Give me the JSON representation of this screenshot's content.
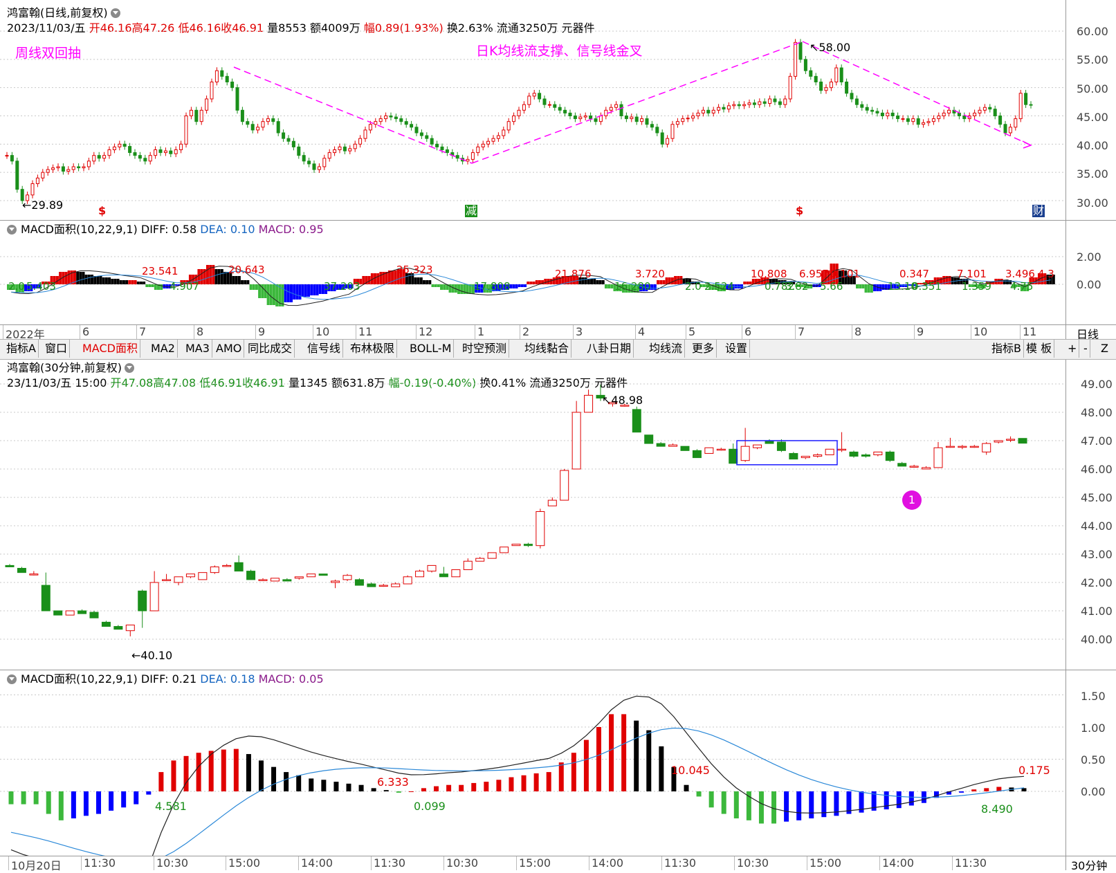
{
  "daily": {
    "title": "鸿富翰(日线,前复权)",
    "info": {
      "date": "2023/11/03/五",
      "open": "开46.16",
      "high": "高47.26",
      "low": "低46.16",
      "close": "收46.91",
      "volume": "量8553",
      "amount": "额4009万",
      "range": "幅0.89(1.93%)",
      "turnover": "换2.63%",
      "float": "流通3250万",
      "sector": "元器件"
    },
    "annotation_left": "周线双回抽",
    "annotation_mid": "日K均线流支撑、信号线金叉",
    "high_label": "58.00",
    "low_label": "29.89",
    "y_ticks": [
      "60.00",
      "55.00",
      "50.00",
      "45.00",
      "40.00",
      "35.00",
      "30.00"
    ],
    "markers": [
      "$",
      "减",
      "$",
      "财"
    ]
  },
  "daily_macd": {
    "name": "MACD面积(10,22,9,1)",
    "diff": "DIFF: 0.58",
    "dea": "DEA: 0.10",
    "macd": "MACD: 0.95",
    "y_ticks": [
      "2.00",
      "0.00"
    ],
    "area_labels_red": [
      "23.541",
      "20.643",
      "25.323",
      "21.876",
      "3.720",
      "10.808",
      "6.957",
      "0.101",
      "0.347",
      "7.101",
      "3.496",
      "4.3"
    ],
    "area_labels_green": [
      "2.0",
      "5.403",
      "4.907",
      "37.203",
      "17.808",
      "16.280",
      "2.0",
      "2.524",
      "0.782",
      "3.82",
      "5.66",
      "13.10",
      "0.351",
      "1.359",
      "4.75"
    ]
  },
  "month_axis": [
    "2022年",
    "6",
    "7",
    "8",
    "9",
    "10",
    "11",
    "12",
    "1",
    "2",
    "3",
    "4",
    "5",
    "6",
    "7",
    "8",
    "9",
    "10",
    "11"
  ],
  "period_daily": "日线",
  "toolbar": {
    "items": [
      "指标A",
      "窗口",
      "MACD面积",
      "MA2",
      "MA3",
      "AMO",
      "同比成交",
      "信号线",
      "布林极限",
      "BOLL-M",
      "时空预测",
      "均线黏合",
      "八卦日期",
      "均线流",
      "更多",
      "设置"
    ],
    "active": "MACD面积",
    "right_items": [
      "指标B",
      "模 板",
      "+",
      "-",
      "Z"
    ]
  },
  "intraday": {
    "title": "鸿富翰(30分钟,前复权)",
    "info": {
      "date": "23/11/03/五 15:00",
      "open": "开47.08",
      "high": "高47.08",
      "low": "低46.91",
      "close": "收46.91",
      "volume": "量1345",
      "amount": "额631.8万",
      "range": "幅-0.19(-0.40%)",
      "turnover": "换0.41%",
      "float": "流通3250万",
      "sector": "元器件"
    },
    "high_label": "48.98",
    "low_label": "40.10",
    "badge": "1",
    "y_ticks": [
      "49.00",
      "48.00",
      "47.00",
      "46.00",
      "45.00",
      "44.00",
      "43.00",
      "42.00",
      "41.00",
      "40.00"
    ]
  },
  "intraday_macd": {
    "name": "MACD面积(10,22,9,1)",
    "diff": "DIFF: 0.21",
    "dea": "DEA: 0.18",
    "macd": "MACD: 0.05",
    "y_ticks": [
      "1.50",
      "1.00",
      "0.50",
      "0.00"
    ],
    "labels": {
      "a": "4.581",
      "b": "6.333",
      "c": "0.099",
      "d": "10.045",
      "e": "8.490",
      "f": "0.175"
    }
  },
  "time_axis": [
    "10月20日",
    "11:30",
    "10:30",
    "15:00",
    "14:00",
    "11:30",
    "10:30",
    "15:00",
    "14:00",
    "11:30",
    "10:30",
    "15:00",
    "14:00",
    "11:30"
  ],
  "period_intraday": "30分钟",
  "colors": {
    "up": "#e00000",
    "down": "#1a8f1a",
    "macd_blue": "#0000ff",
    "macd_black": "#000000",
    "trend": "#ff00ff",
    "dea": "#2a88d8"
  },
  "chart_data": [
    {
      "type": "bar",
      "name": "30min candles",
      "note_ohlc": "open/high/low/close",
      "candles": [
        [
          42.6,
          42.65,
          42.55,
          42.55
        ],
        [
          42.5,
          42.55,
          42.35,
          42.35
        ],
        [
          42.3,
          42.4,
          42.25,
          42.3
        ],
        [
          41.9,
          42.35,
          41.0,
          41.0
        ],
        [
          41.0,
          41.0,
          40.85,
          40.85
        ],
        [
          40.85,
          41.0,
          40.85,
          41.0
        ],
        [
          41.0,
          41.05,
          40.9,
          40.9
        ],
        [
          40.95,
          41.0,
          40.75,
          40.75
        ],
        [
          40.6,
          40.65,
          40.45,
          40.45
        ],
        [
          40.45,
          40.5,
          40.35,
          40.35
        ],
        [
          40.3,
          40.5,
          40.1,
          40.5
        ],
        [
          41.7,
          41.75,
          40.4,
          41.0
        ],
        [
          41.0,
          42.4,
          41.0,
          42.0
        ],
        [
          42.1,
          42.3,
          42.05,
          42.1
        ],
        [
          42.0,
          42.2,
          41.9,
          42.2
        ],
        [
          42.2,
          42.3,
          42.15,
          42.3
        ],
        [
          42.1,
          42.35,
          42.1,
          42.35
        ],
        [
          42.35,
          42.6,
          42.3,
          42.55
        ],
        [
          42.6,
          42.65,
          42.55,
          42.6
        ],
        [
          42.7,
          42.95,
          42.4,
          42.4
        ],
        [
          42.4,
          42.45,
          42.1,
          42.1
        ],
        [
          42.1,
          42.15,
          42.05,
          42.1
        ],
        [
          42.05,
          42.15,
          42.05,
          42.15
        ],
        [
          42.1,
          42.15,
          42.05,
          42.05
        ],
        [
          42.15,
          42.2,
          42.1,
          42.2
        ],
        [
          42.2,
          42.3,
          42.2,
          42.3
        ],
        [
          42.3,
          42.3,
          42.25,
          42.25
        ],
        [
          42.0,
          42.1,
          41.8,
          42.05
        ],
        [
          42.1,
          42.3,
          42.05,
          42.25
        ],
        [
          42.1,
          42.15,
          41.9,
          41.9
        ],
        [
          41.95,
          42.0,
          41.85,
          41.85
        ],
        [
          41.9,
          41.95,
          41.85,
          41.9
        ],
        [
          41.85,
          42.0,
          41.85,
          41.95
        ],
        [
          41.95,
          42.25,
          41.95,
          42.2
        ],
        [
          42.2,
          42.45,
          42.2,
          42.4
        ],
        [
          42.4,
          42.6,
          42.35,
          42.6
        ],
        [
          42.3,
          42.55,
          42.2,
          42.2
        ],
        [
          42.2,
          42.45,
          42.2,
          42.45
        ],
        [
          42.45,
          42.85,
          42.45,
          42.75
        ],
        [
          42.75,
          42.9,
          42.75,
          42.85
        ],
        [
          42.85,
          43.05,
          42.85,
          43.05
        ],
        [
          43.05,
          43.25,
          43.05,
          43.25
        ],
        [
          43.3,
          43.35,
          43.3,
          43.35
        ],
        [
          43.35,
          43.4,
          43.25,
          43.3
        ],
        [
          43.3,
          44.6,
          43.2,
          44.5
        ],
        [
          44.7,
          45.0,
          44.7,
          44.9
        ],
        [
          44.9,
          46.0,
          44.9,
          45.95
        ],
        [
          46.0,
          48.4,
          46.0,
          48.0
        ],
        [
          48.0,
          48.8,
          48.0,
          48.6
        ],
        [
          48.6,
          48.98,
          48.4,
          48.5
        ],
        [
          48.3,
          48.4,
          48.2,
          48.35
        ],
        [
          48.25,
          48.3,
          48.2,
          48.25
        ],
        [
          48.1,
          48.2,
          47.3,
          47.3
        ],
        [
          47.2,
          47.2,
          46.9,
          46.9
        ],
        [
          46.9,
          46.95,
          46.8,
          46.8
        ],
        [
          46.8,
          46.9,
          46.8,
          46.85
        ],
        [
          46.8,
          46.8,
          46.65,
          46.65
        ],
        [
          46.65,
          46.7,
          46.4,
          46.4
        ],
        [
          46.55,
          46.75,
          46.55,
          46.75
        ],
        [
          46.7,
          46.75,
          46.65,
          46.7
        ],
        [
          46.7,
          46.9,
          46.2,
          46.2
        ],
        [
          46.3,
          47.45,
          46.25,
          46.8
        ],
        [
          46.75,
          46.85,
          46.7,
          46.85
        ],
        [
          47.0,
          47.05,
          46.9,
          46.9
        ],
        [
          46.95,
          47.05,
          46.6,
          46.65
        ],
        [
          46.55,
          46.6,
          46.35,
          46.35
        ],
        [
          46.4,
          46.45,
          46.35,
          46.45
        ],
        [
          46.45,
          46.55,
          46.4,
          46.5
        ],
        [
          46.5,
          46.7,
          46.5,
          46.7
        ],
        [
          46.7,
          47.3,
          46.6,
          46.7
        ],
        [
          46.6,
          46.65,
          46.4,
          46.45
        ],
        [
          46.5,
          46.55,
          46.4,
          46.45
        ],
        [
          46.5,
          46.6,
          46.45,
          46.6
        ],
        [
          46.6,
          46.65,
          46.25,
          46.3
        ],
        [
          46.2,
          46.25,
          46.1,
          46.1
        ],
        [
          46.1,
          46.15,
          46.05,
          46.1
        ],
        [
          46.0,
          46.1,
          46.0,
          46.05
        ],
        [
          46.05,
          46.95,
          46.05,
          46.75
        ],
        [
          46.8,
          47.1,
          46.75,
          46.8
        ],
        [
          46.8,
          46.85,
          46.7,
          46.8
        ],
        [
          46.8,
          46.85,
          46.75,
          46.8
        ],
        [
          46.6,
          46.95,
          46.5,
          46.9
        ],
        [
          46.95,
          47.0,
          46.9,
          47.0
        ],
        [
          47.05,
          47.15,
          46.95,
          47.05
        ],
        [
          47.08,
          47.08,
          46.91,
          46.91
        ]
      ]
    },
    {
      "type": "bar",
      "name": "30min MACD histogram",
      "values": [
        -0.2,
        -0.2,
        -0.2,
        -0.35,
        -0.45,
        -0.42,
        -0.38,
        -0.35,
        -0.3,
        -0.25,
        -0.2,
        -0.05,
        0.3,
        0.48,
        0.55,
        0.6,
        0.63,
        0.65,
        0.66,
        0.58,
        0.48,
        0.38,
        0.3,
        0.25,
        0.2,
        0.18,
        0.15,
        0.12,
        0.1,
        0.05,
        0.02,
        -0.02,
        0.0,
        0.05,
        0.08,
        0.1,
        0.1,
        0.13,
        0.15,
        0.18,
        0.22,
        0.25,
        0.28,
        0.3,
        0.45,
        0.6,
        0.8,
        1.0,
        1.2,
        1.2,
        1.1,
        0.95,
        0.7,
        0.38,
        0.1,
        -0.08,
        -0.25,
        -0.35,
        -0.42,
        -0.45,
        -0.5,
        -0.5,
        -0.47,
        -0.45,
        -0.42,
        -0.4,
        -0.38,
        -0.35,
        -0.33,
        -0.3,
        -0.28,
        -0.26,
        -0.22,
        -0.18,
        -0.1,
        -0.05,
        -0.02,
        0.03,
        0.05,
        0.07,
        0.06,
        0.05
      ],
      "ylim": [
        -0.6,
        1.6
      ]
    },
    {
      "type": "line",
      "name": "daily close",
      "values": [
        38,
        37,
        32,
        30,
        31,
        33,
        34,
        35,
        35.5,
        35.8,
        36,
        35.2,
        35.5,
        36,
        35.8,
        36,
        37,
        38,
        37.5,
        38,
        39,
        39.5,
        40,
        39.6,
        38.5,
        38,
        37.5,
        37,
        38,
        39,
        38.5,
        38.8,
        38.3,
        39,
        40,
        45,
        46,
        44,
        46,
        48,
        51,
        53,
        52,
        51,
        50,
        46,
        44,
        43.5,
        42.5,
        43,
        44,
        44.5,
        44,
        42,
        41,
        40.5,
        39.5,
        38,
        37,
        36.5,
        35.5,
        36,
        37.5,
        38.5,
        39,
        39.5,
        38.8,
        39.2,
        40,
        41,
        42.5,
        43.5,
        44,
        44.5,
        45,
        44.8,
        44.5,
        44,
        43.5,
        43,
        42,
        41.5,
        41,
        40,
        39.5,
        39,
        38.5,
        38,
        37.5,
        37,
        37.3,
        38.5,
        39.5,
        40,
        40.5,
        41,
        41.5,
        42.5,
        44,
        45,
        46,
        47,
        48.5,
        49,
        48,
        47,
        47,
        46.5,
        46,
        45.5,
        45,
        44.5,
        44.8,
        45,
        44.5,
        44,
        45,
        46,
        46.5,
        47,
        45,
        44.5,
        44.8,
        44,
        44.5,
        43.5,
        43,
        42,
        40,
        41,
        43.5,
        44,
        44.5,
        44.6,
        45,
        45.5,
        46,
        45.5,
        46,
        46.5,
        46.2,
        46.8,
        47,
        46.8,
        47,
        47.3,
        47,
        47.5,
        47.2,
        48,
        47.5,
        47,
        48,
        52,
        58,
        55,
        53,
        52,
        51,
        49.5,
        50,
        51,
        53.5,
        51,
        49,
        48,
        47,
        46.5,
        46,
        45.8,
        45.5,
        45,
        45.5,
        45,
        44.5,
        44.5,
        44,
        44.5,
        43.5,
        43.8,
        44,
        44.5,
        45,
        45.5,
        46,
        45.5,
        45,
        44.5,
        45,
        45.5,
        46,
        46.5,
        46.2,
        45,
        43.5,
        42,
        43,
        44.5,
        49,
        47,
        46.9
      ]
    },
    {
      "type": "bar",
      "name": "daily MACD histogram",
      "values": [
        -0.4,
        -0.6,
        -0.5,
        -0.3,
        0.2,
        0.6,
        0.9,
        1.0,
        0.9,
        0.7,
        0.6,
        0.5,
        0.4,
        0.3,
        0.3,
        0.2,
        -0.2,
        -0.4,
        -0.3,
        -0.1,
        0.3,
        0.7,
        1.1,
        1.4,
        1.1,
        0.9,
        0.6,
        0.3,
        -0.4,
        -1.0,
        -1.5,
        -1.6,
        -1.3,
        -1.1,
        -0.9,
        -0.8,
        -0.7,
        -0.5,
        -0.4,
        -0.3,
        0.4,
        0.6,
        0.8,
        0.9,
        1.0,
        1.1,
        0.8,
        0.5,
        0.3,
        -0.2,
        -0.4,
        -0.6,
        -0.7,
        -0.7,
        -0.6,
        -0.6,
        -0.5,
        -0.4,
        -0.3,
        -0.2,
        0.2,
        0.3,
        0.4,
        0.5,
        0.6,
        0.6,
        0.5,
        0.4,
        0.3,
        -0.3,
        -0.5,
        -0.6,
        -0.6,
        -0.5,
        -0.4,
        0.3,
        0.5,
        0.6,
        0.4,
        0.2,
        -0.2,
        -0.4,
        -0.5,
        -0.4,
        -0.3,
        0.2,
        0.4,
        0.5,
        0.4,
        0.3,
        0.2,
        -0.2,
        -0.3,
        -0.2,
        1.0,
        1.5,
        1.0,
        0.6,
        -0.3,
        -0.6,
        -0.5,
        -0.4,
        -0.3,
        -0.2,
        -0.1,
        0.1,
        0.3,
        0.5,
        0.6,
        0.5,
        0.4,
        -0.2,
        -0.3,
        0.2,
        0.4,
        0.3,
        -0.2,
        -0.5,
        0.5,
        0.8,
        0.7
      ],
      "ylim": [
        -2.0,
        3.0
      ]
    }
  ]
}
